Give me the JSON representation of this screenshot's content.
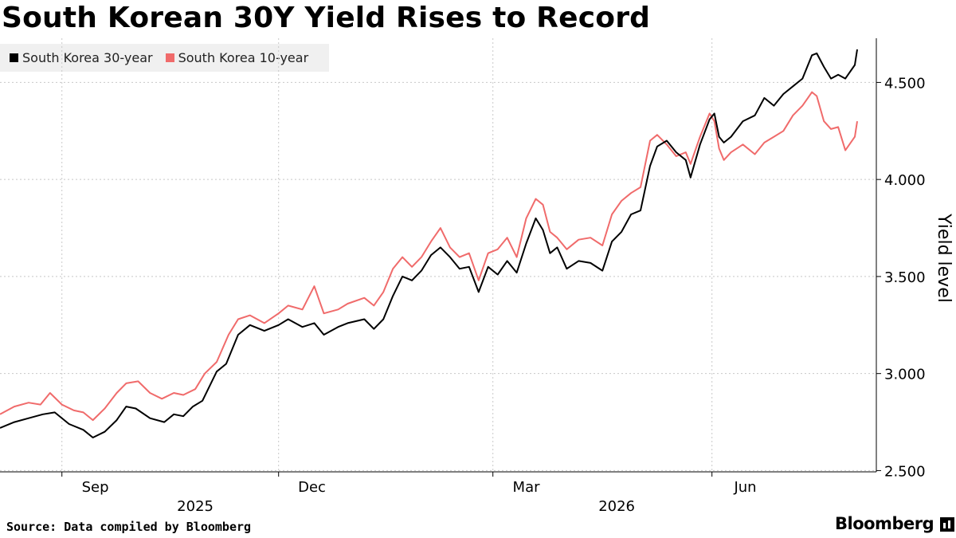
{
  "title": "South Korean 30Y Yield Rises to Record",
  "source": "Source: Data compiled by Bloomberg",
  "brand": "Bloomberg",
  "chart_data": {
    "type": "line",
    "ylabel": "Yield level",
    "ylim": [
      2.45,
      4.85
    ],
    "yticks": [
      2.5,
      3.0,
      3.5,
      4.0,
      4.5
    ],
    "ytick_labels": [
      "2.500",
      "3.000",
      "3.500",
      "4.000",
      "4.500"
    ],
    "xlim": [
      "2025-08-06",
      "2026-08-01"
    ],
    "month_ticks": [
      {
        "label": "Sep",
        "at": "2025-09-15",
        "gridline": "2025-09-01"
      },
      {
        "label": "Dec",
        "at": "2025-12-15",
        "gridline": "2025-12-01"
      },
      {
        "label": "Mar",
        "at": "2026-03-15",
        "gridline": "2026-03-01"
      },
      {
        "label": "Jun",
        "at": "2026-06-15",
        "gridline": "2026-06-01"
      }
    ],
    "year_labels": [
      {
        "label": "2025",
        "at": "2025-10-27"
      },
      {
        "label": "2026",
        "at": "2026-04-22"
      }
    ],
    "grid": true,
    "legend_position": "top-left",
    "series": [
      {
        "name": "South Korea 30-year",
        "color": "#000000",
        "points": [
          [
            "2025-08-06",
            2.72
          ],
          [
            "2025-08-12",
            2.75
          ],
          [
            "2025-08-18",
            2.77
          ],
          [
            "2025-08-24",
            2.79
          ],
          [
            "2025-08-29",
            2.8
          ],
          [
            "2025-09-04",
            2.74
          ],
          [
            "2025-09-10",
            2.71
          ],
          [
            "2025-09-14",
            2.67
          ],
          [
            "2025-09-19",
            2.7
          ],
          [
            "2025-09-24",
            2.76
          ],
          [
            "2025-09-28",
            2.83
          ],
          [
            "2025-10-02",
            2.82
          ],
          [
            "2025-10-08",
            2.77
          ],
          [
            "2025-10-14",
            2.75
          ],
          [
            "2025-10-18",
            2.79
          ],
          [
            "2025-10-22",
            2.78
          ],
          [
            "2025-10-26",
            2.83
          ],
          [
            "2025-10-30",
            2.86
          ],
          [
            "2025-11-05",
            3.01
          ],
          [
            "2025-11-09",
            3.05
          ],
          [
            "2025-11-14",
            3.2
          ],
          [
            "2025-11-19",
            3.25
          ],
          [
            "2025-11-25",
            3.22
          ],
          [
            "2025-12-01",
            3.25
          ],
          [
            "2025-12-05",
            3.28
          ],
          [
            "2025-12-11",
            3.24
          ],
          [
            "2025-12-16",
            3.26
          ],
          [
            "2025-12-20",
            3.2
          ],
          [
            "2025-12-26",
            3.24
          ],
          [
            "2025-12-30",
            3.26
          ],
          [
            "2026-01-06",
            3.28
          ],
          [
            "2026-01-10",
            3.23
          ],
          [
            "2026-01-14",
            3.28
          ],
          [
            "2026-01-18",
            3.4
          ],
          [
            "2026-01-22",
            3.5
          ],
          [
            "2026-01-26",
            3.48
          ],
          [
            "2026-01-30",
            3.53
          ],
          [
            "2026-02-03",
            3.61
          ],
          [
            "2026-02-07",
            3.65
          ],
          [
            "2026-02-11",
            3.6
          ],
          [
            "2026-02-15",
            3.54
          ],
          [
            "2026-02-19",
            3.55
          ],
          [
            "2026-02-23",
            3.42
          ],
          [
            "2026-02-27",
            3.55
          ],
          [
            "2026-03-03",
            3.51
          ],
          [
            "2026-03-07",
            3.58
          ],
          [
            "2026-03-11",
            3.52
          ],
          [
            "2026-03-15",
            3.67
          ],
          [
            "2026-03-19",
            3.8
          ],
          [
            "2026-03-22",
            3.74
          ],
          [
            "2026-03-25",
            3.62
          ],
          [
            "2026-03-28",
            3.65
          ],
          [
            "2026-04-01",
            3.54
          ],
          [
            "2026-04-06",
            3.58
          ],
          [
            "2026-04-11",
            3.57
          ],
          [
            "2026-04-16",
            3.53
          ],
          [
            "2026-04-20",
            3.68
          ],
          [
            "2026-04-24",
            3.73
          ],
          [
            "2026-04-28",
            3.82
          ],
          [
            "2026-05-02",
            3.84
          ],
          [
            "2026-05-06",
            4.07
          ],
          [
            "2026-05-09",
            4.17
          ],
          [
            "2026-05-13",
            4.2
          ],
          [
            "2026-05-17",
            4.14
          ],
          [
            "2026-05-21",
            4.1
          ],
          [
            "2026-05-23",
            4.01
          ],
          [
            "2026-05-27",
            4.18
          ],
          [
            "2026-05-31",
            4.31
          ],
          [
            "2026-06-02",
            4.34
          ],
          [
            "2026-06-04",
            4.22
          ],
          [
            "2026-06-06",
            4.19
          ],
          [
            "2026-06-09",
            4.22
          ],
          [
            "2026-06-14",
            4.3
          ],
          [
            "2026-06-19",
            4.33
          ],
          [
            "2026-06-23",
            4.42
          ],
          [
            "2026-06-27",
            4.38
          ],
          [
            "2026-07-01",
            4.44
          ],
          [
            "2026-07-05",
            4.48
          ],
          [
            "2026-07-09",
            4.52
          ],
          [
            "2026-07-13",
            4.64
          ],
          [
            "2026-07-15",
            4.65
          ],
          [
            "2026-07-18",
            4.58
          ],
          [
            "2026-07-21",
            4.52
          ],
          [
            "2026-07-24",
            4.54
          ],
          [
            "2026-07-27",
            4.52
          ],
          [
            "2026-07-31",
            4.59
          ],
          [
            "2026-08-01",
            4.67
          ]
        ]
      },
      {
        "name": "South Korea 10-year",
        "color": "#f06b6b",
        "points": [
          [
            "2025-08-06",
            2.79
          ],
          [
            "2025-08-12",
            2.83
          ],
          [
            "2025-08-18",
            2.85
          ],
          [
            "2025-08-23",
            2.84
          ],
          [
            "2025-08-27",
            2.9
          ],
          [
            "2025-09-01",
            2.84
          ],
          [
            "2025-09-06",
            2.81
          ],
          [
            "2025-09-10",
            2.8
          ],
          [
            "2025-09-14",
            2.76
          ],
          [
            "2025-09-19",
            2.82
          ],
          [
            "2025-09-24",
            2.9
          ],
          [
            "2025-09-28",
            2.95
          ],
          [
            "2025-10-03",
            2.96
          ],
          [
            "2025-10-08",
            2.9
          ],
          [
            "2025-10-13",
            2.87
          ],
          [
            "2025-10-18",
            2.9
          ],
          [
            "2025-10-22",
            2.89
          ],
          [
            "2025-10-27",
            2.92
          ],
          [
            "2025-10-31",
            3.0
          ],
          [
            "2025-11-05",
            3.06
          ],
          [
            "2025-11-10",
            3.2
          ],
          [
            "2025-11-14",
            3.28
          ],
          [
            "2025-11-19",
            3.3
          ],
          [
            "2025-11-25",
            3.26
          ],
          [
            "2025-12-01",
            3.31
          ],
          [
            "2025-12-05",
            3.35
          ],
          [
            "2025-12-11",
            3.33
          ],
          [
            "2025-12-16",
            3.45
          ],
          [
            "2025-12-20",
            3.31
          ],
          [
            "2025-12-26",
            3.33
          ],
          [
            "2025-12-30",
            3.36
          ],
          [
            "2026-01-06",
            3.39
          ],
          [
            "2026-01-10",
            3.35
          ],
          [
            "2026-01-14",
            3.42
          ],
          [
            "2026-01-18",
            3.54
          ],
          [
            "2026-01-22",
            3.6
          ],
          [
            "2026-01-26",
            3.55
          ],
          [
            "2026-01-30",
            3.6
          ],
          [
            "2026-02-03",
            3.68
          ],
          [
            "2026-02-07",
            3.75
          ],
          [
            "2026-02-11",
            3.65
          ],
          [
            "2026-02-15",
            3.6
          ],
          [
            "2026-02-19",
            3.62
          ],
          [
            "2026-02-23",
            3.48
          ],
          [
            "2026-02-27",
            3.62
          ],
          [
            "2026-03-03",
            3.64
          ],
          [
            "2026-03-07",
            3.7
          ],
          [
            "2026-03-11",
            3.6
          ],
          [
            "2026-03-15",
            3.8
          ],
          [
            "2026-03-19",
            3.9
          ],
          [
            "2026-03-22",
            3.87
          ],
          [
            "2026-03-25",
            3.73
          ],
          [
            "2026-03-28",
            3.7
          ],
          [
            "2026-04-01",
            3.64
          ],
          [
            "2026-04-06",
            3.69
          ],
          [
            "2026-04-11",
            3.7
          ],
          [
            "2026-04-16",
            3.66
          ],
          [
            "2026-04-20",
            3.82
          ],
          [
            "2026-04-24",
            3.89
          ],
          [
            "2026-04-28",
            3.93
          ],
          [
            "2026-05-02",
            3.96
          ],
          [
            "2026-05-06",
            4.2
          ],
          [
            "2026-05-09",
            4.23
          ],
          [
            "2026-05-13",
            4.18
          ],
          [
            "2026-05-17",
            4.12
          ],
          [
            "2026-05-21",
            4.14
          ],
          [
            "2026-05-23",
            4.08
          ],
          [
            "2026-05-27",
            4.22
          ],
          [
            "2026-05-31",
            4.34
          ],
          [
            "2026-06-02",
            4.3
          ],
          [
            "2026-06-04",
            4.16
          ],
          [
            "2026-06-06",
            4.1
          ],
          [
            "2026-06-09",
            4.14
          ],
          [
            "2026-06-14",
            4.18
          ],
          [
            "2026-06-19",
            4.13
          ],
          [
            "2026-06-23",
            4.19
          ],
          [
            "2026-06-27",
            4.22
          ],
          [
            "2026-07-01",
            4.25
          ],
          [
            "2026-07-05",
            4.33
          ],
          [
            "2026-07-09",
            4.38
          ],
          [
            "2026-07-13",
            4.45
          ],
          [
            "2026-07-15",
            4.43
          ],
          [
            "2026-07-18",
            4.3
          ],
          [
            "2026-07-21",
            4.26
          ],
          [
            "2026-07-24",
            4.27
          ],
          [
            "2026-07-27",
            4.15
          ],
          [
            "2026-07-31",
            4.22
          ],
          [
            "2026-08-01",
            4.3
          ]
        ]
      }
    ]
  }
}
